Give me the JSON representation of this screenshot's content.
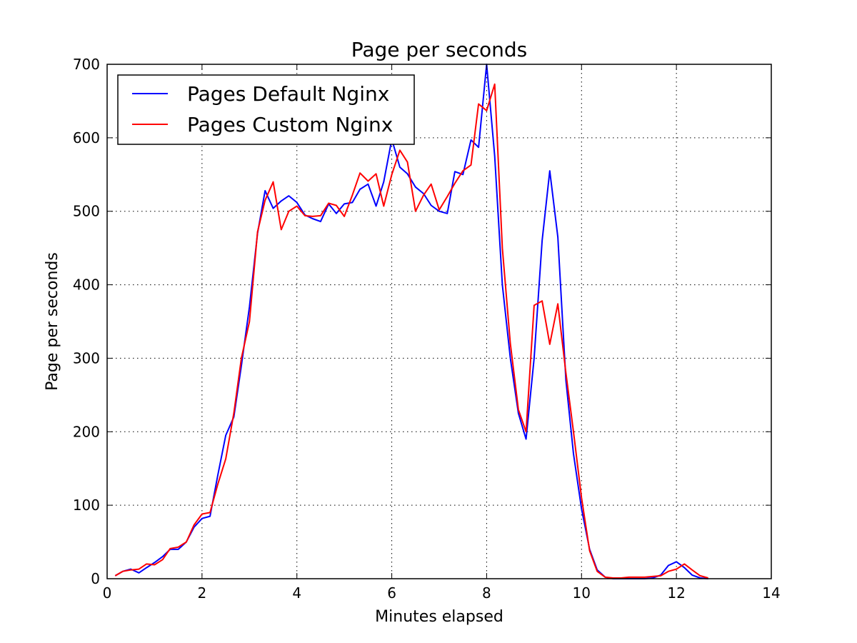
{
  "chart_data": {
    "type": "line",
    "title": "Page per seconds",
    "xlabel": "Minutes elapsed",
    "ylabel": "Page per seconds",
    "xlim": [
      0,
      14
    ],
    "ylim": [
      0,
      700
    ],
    "xticks": [
      0,
      2,
      4,
      6,
      8,
      10,
      12,
      14
    ],
    "yticks": [
      0,
      100,
      200,
      300,
      400,
      500,
      600,
      700
    ],
    "grid": true,
    "legend_position": "upper-left",
    "series": [
      {
        "name": "Pages Default Nginx",
        "color": "#0000ff",
        "x": [
          0.17,
          0.33,
          0.5,
          0.67,
          0.83,
          1.0,
          1.17,
          1.33,
          1.5,
          1.67,
          1.83,
          2.0,
          2.17,
          2.33,
          2.5,
          2.67,
          2.83,
          3.0,
          3.17,
          3.33,
          3.5,
          3.67,
          3.83,
          4.0,
          4.17,
          4.33,
          4.5,
          4.67,
          4.83,
          5.0,
          5.17,
          5.33,
          5.5,
          5.67,
          5.83,
          6.0,
          6.17,
          6.33,
          6.5,
          6.67,
          6.83,
          7.0,
          7.17,
          7.33,
          7.5,
          7.67,
          7.83,
          8.0,
          8.17,
          8.33,
          8.5,
          8.67,
          8.83,
          9.0,
          9.17,
          9.33,
          9.5,
          9.67,
          9.83,
          10.0,
          10.17,
          10.33,
          10.5,
          10.67,
          10.83,
          11.0,
          11.17,
          11.33,
          11.5,
          11.67,
          11.83,
          12.0,
          12.17,
          12.33,
          12.5,
          12.67
        ],
        "y": [
          4,
          10,
          13,
          8,
          15,
          22,
          30,
          40,
          40,
          50,
          70,
          82,
          85,
          140,
          195,
          220,
          290,
          370,
          470,
          528,
          504,
          514,
          521,
          512,
          495,
          490,
          486,
          510,
          497,
          510,
          512,
          530,
          537,
          507,
          540,
          598,
          560,
          551,
          533,
          524,
          508,
          500,
          497,
          554,
          550,
          597,
          587,
          700,
          575,
          400,
          300,
          225,
          190,
          300,
          460,
          555,
          465,
          270,
          170,
          95,
          40,
          12,
          2,
          0,
          0,
          0,
          0,
          0,
          1,
          5,
          18,
          23,
          15,
          5,
          1,
          0
        ]
      },
      {
        "name": "Pages Custom Nginx",
        "color": "#ff0000",
        "x": [
          0.17,
          0.33,
          0.5,
          0.67,
          0.83,
          1.0,
          1.17,
          1.33,
          1.5,
          1.67,
          1.83,
          2.0,
          2.17,
          2.33,
          2.5,
          2.67,
          2.83,
          3.0,
          3.17,
          3.33,
          3.5,
          3.67,
          3.83,
          4.0,
          4.17,
          4.33,
          4.5,
          4.67,
          4.83,
          5.0,
          5.17,
          5.33,
          5.5,
          5.67,
          5.83,
          6.0,
          6.17,
          6.33,
          6.5,
          6.67,
          6.83,
          7.0,
          7.17,
          7.33,
          7.5,
          7.67,
          7.83,
          8.0,
          8.17,
          8.33,
          8.5,
          8.67,
          8.83,
          9.0,
          9.17,
          9.33,
          9.5,
          9.67,
          9.83,
          10.0,
          10.17,
          10.33,
          10.5,
          10.67,
          10.83,
          11.0,
          11.17,
          11.33,
          11.5,
          11.67,
          11.83,
          12.0,
          12.17,
          12.33,
          12.5,
          12.67
        ],
        "y": [
          4,
          10,
          12,
          13,
          20,
          19,
          26,
          41,
          43,
          50,
          73,
          88,
          90,
          128,
          163,
          225,
          300,
          350,
          472,
          515,
          540,
          475,
          500,
          507,
          494,
          493,
          494,
          511,
          508,
          493,
          522,
          552,
          541,
          551,
          507,
          550,
          583,
          567,
          500,
          522,
          537,
          502,
          520,
          538,
          555,
          563,
          646,
          637,
          673,
          450,
          320,
          230,
          200,
          372,
          378,
          319,
          374,
          280,
          200,
          110,
          38,
          10,
          2,
          1,
          1,
          2,
          2,
          2,
          3,
          4,
          10,
          13,
          20,
          12,
          4,
          1
        ]
      }
    ]
  }
}
